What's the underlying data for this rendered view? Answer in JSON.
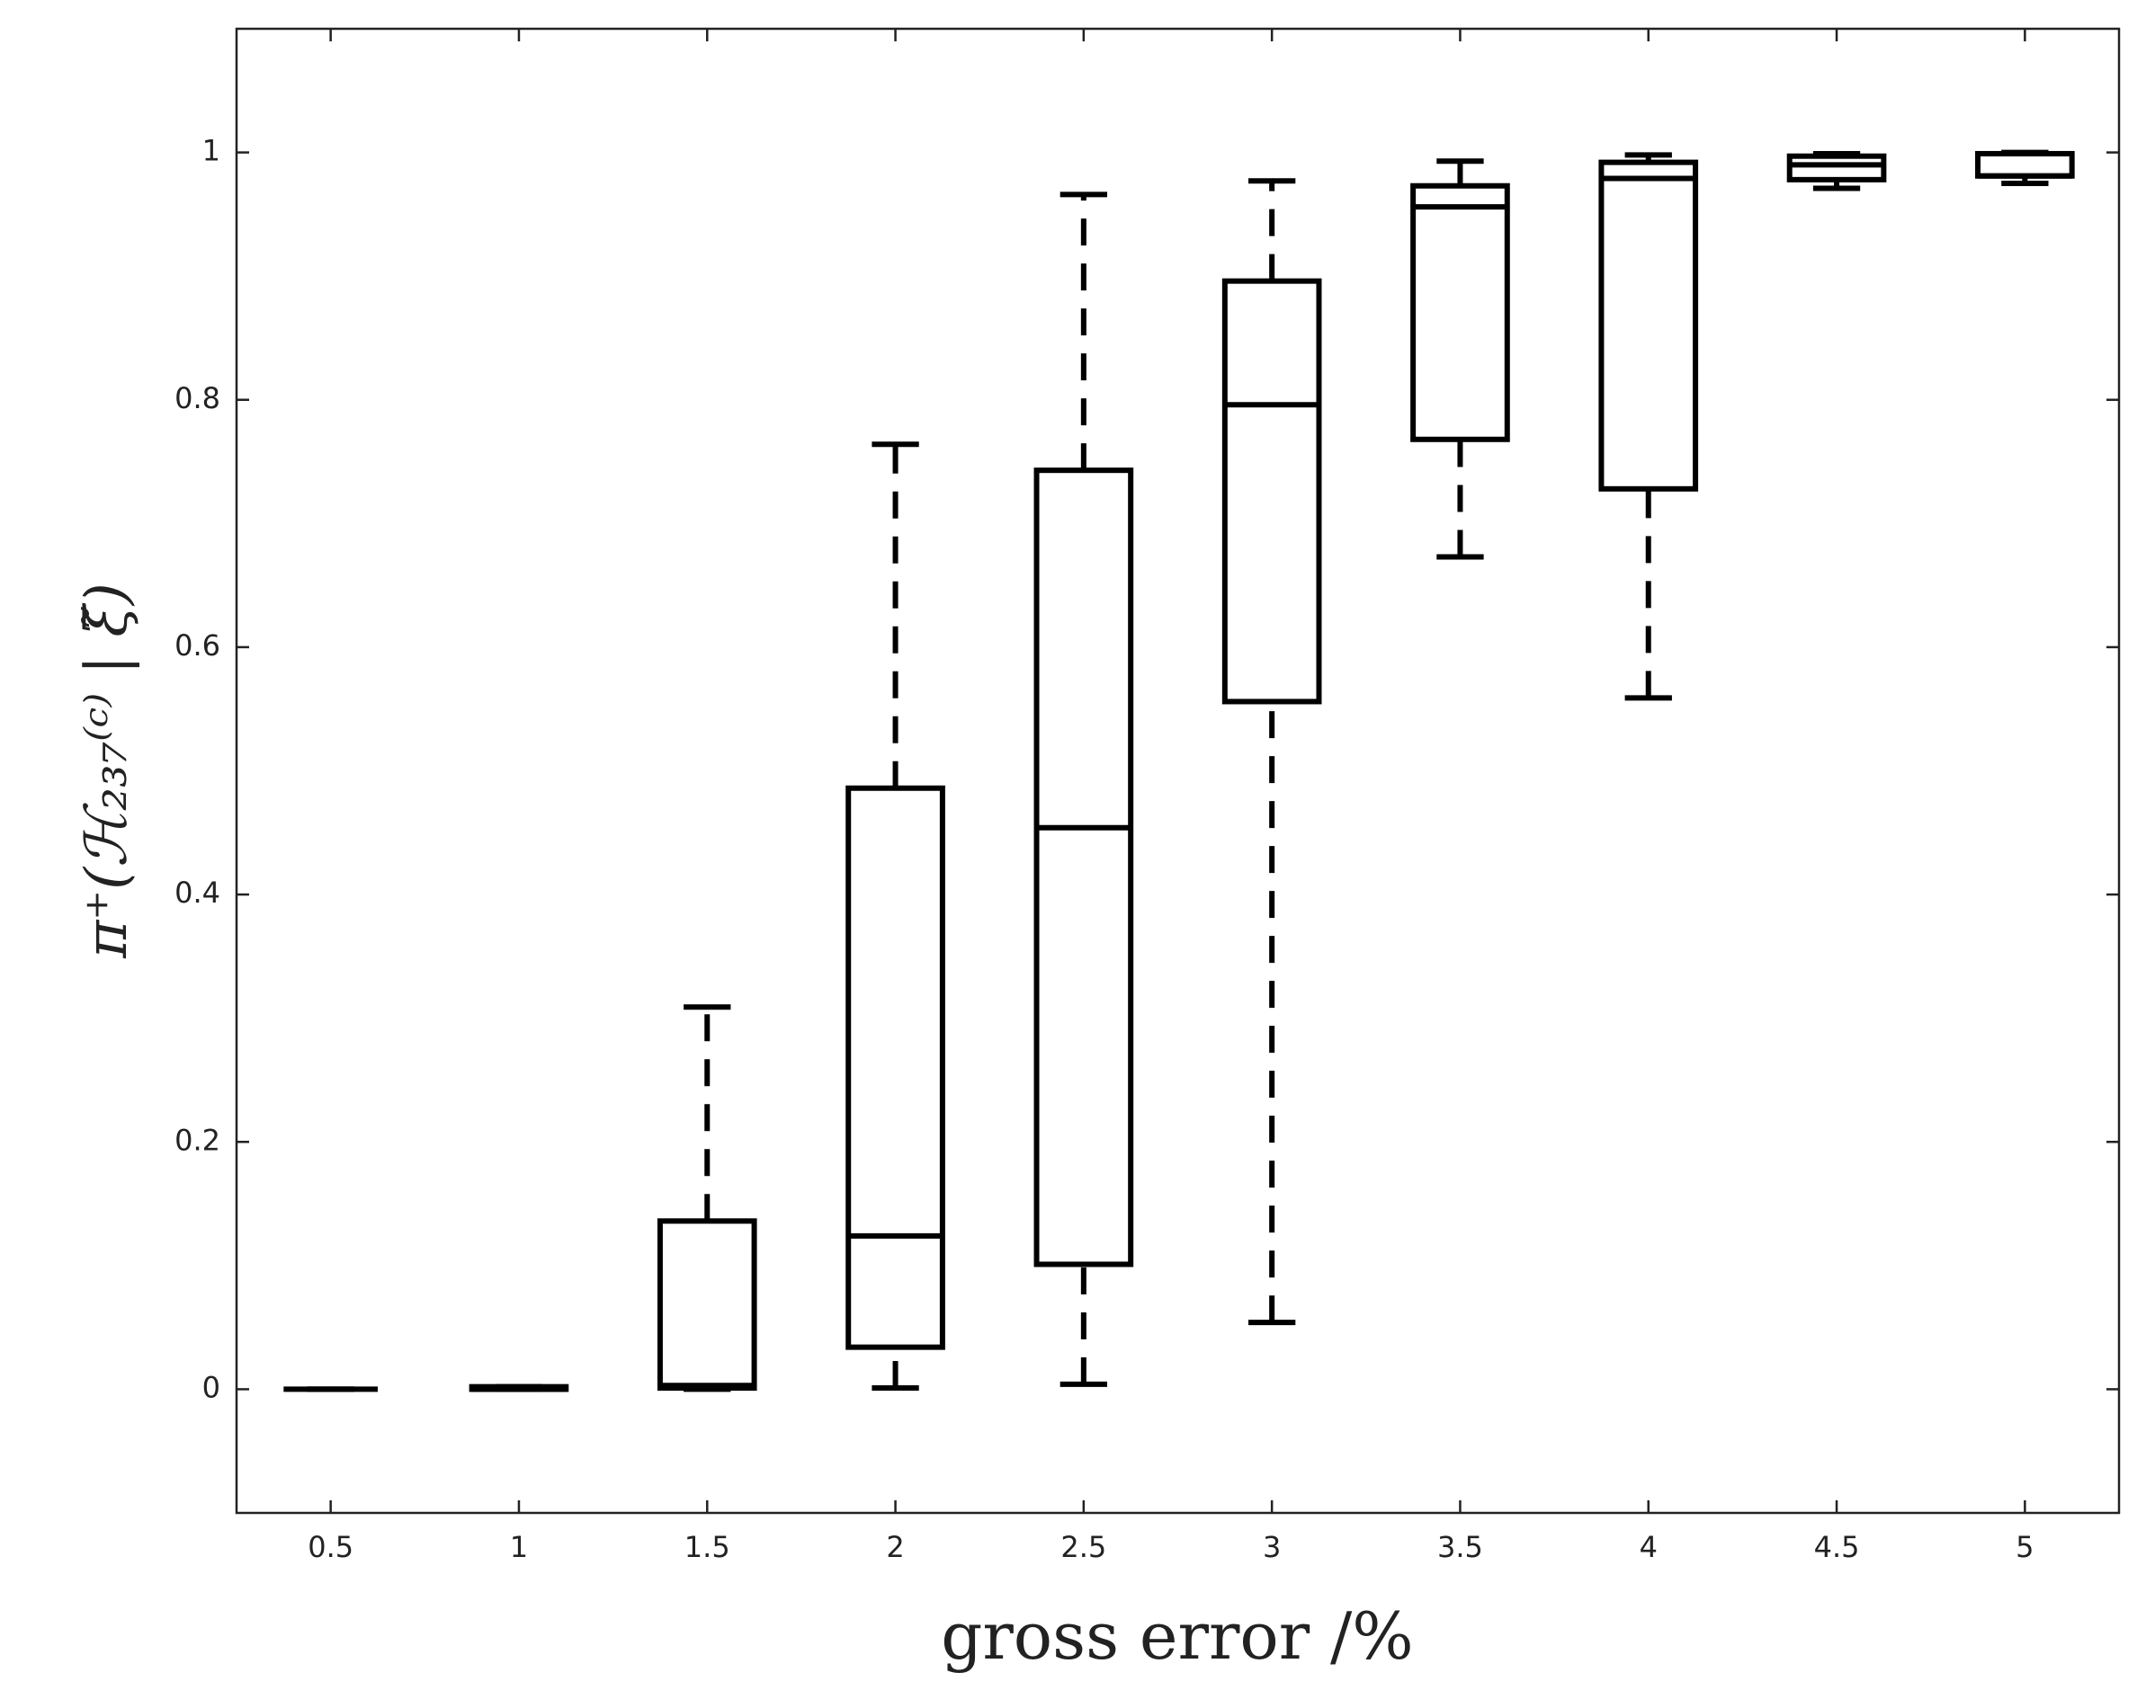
{
  "chart_data": {
    "type": "box",
    "x_label": "gross error /%",
    "y_label": "π⁺(ℋ₂₃₇⁽ᶜ⁾ | ξ̃)",
    "categories": [
      "0.5",
      "1",
      "1.5",
      "2",
      "2.5",
      "3",
      "3.5",
      "4",
      "4.5",
      "5"
    ],
    "min": [
      0,
      0,
      0,
      0.001,
      0.004,
      0.054,
      0.673,
      0.559,
      0.971,
      0.975
    ],
    "q1": [
      0,
      0,
      0.001,
      0.034,
      0.101,
      0.556,
      0.768,
      0.728,
      0.978,
      0.981
    ],
    "median": [
      0,
      0,
      0.003,
      0.124,
      0.454,
      0.796,
      0.956,
      0.979,
      0.99,
      0.981
    ],
    "q3": [
      0,
      0.002,
      0.136,
      0.486,
      0.743,
      0.896,
      0.973,
      0.992,
      0.997,
      0.999
    ],
    "max": [
      0,
      0.002,
      0.309,
      0.764,
      0.966,
      0.977,
      0.993,
      0.998,
      0.999,
      1.0
    ],
    "color": "#000000",
    "ylim": [
      -0.1,
      1.1
    ],
    "yticks": [
      0,
      0.2,
      0.4,
      0.6,
      0.8,
      1
    ]
  }
}
